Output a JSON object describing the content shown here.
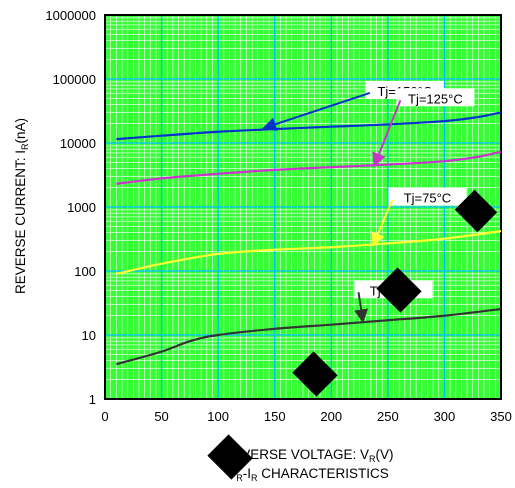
{
  "chart_data": {
    "type": "line",
    "xlabel": {
      "main": "REVERSE VOLTAGE: V",
      "sub": "R",
      "tail": "(V)"
    },
    "ylabel": {
      "main": "REVERSE CURRENT: I",
      "sub": "R",
      "tail": "(nA)"
    },
    "caption": {
      "main1": "V",
      "sub1": "R",
      "mid": "-I",
      "sub2": "R",
      "tail": " CHARACTERISTICS"
    },
    "xlim": [
      0,
      350
    ],
    "ylim": [
      1,
      1000000
    ],
    "y_scale": "log",
    "x_ticks": [
      "0",
      "50",
      "100",
      "150",
      "200",
      "250",
      "300",
      "350"
    ],
    "y_ticks": [
      "1",
      "10",
      "100",
      "1000",
      "10000",
      "100000",
      "1000000"
    ],
    "grid": true,
    "colors": {
      "background": "#33ff33",
      "grid_major": "#00bfff",
      "grid_minor": "#ffffff",
      "border": "#000000"
    },
    "series": [
      {
        "name": "Tj=150°C",
        "color": "#0033cc",
        "x": [
          10,
          50,
          100,
          150,
          200,
          250,
          300,
          330,
          350
        ],
        "y": [
          11500,
          13000,
          15000,
          16500,
          18000,
          19500,
          22000,
          25500,
          30000
        ]
      },
      {
        "name": "Tj=125°C",
        "color": "#cc33cc",
        "x": [
          10,
          50,
          100,
          150,
          200,
          250,
          300,
          330,
          350
        ],
        "y": [
          2300,
          2800,
          3300,
          3800,
          4200,
          4600,
          5200,
          6100,
          7300
        ]
      },
      {
        "name": "Tj=75°C",
        "color": "#ffff33",
        "x": [
          10,
          50,
          100,
          150,
          200,
          250,
          300,
          350
        ],
        "y": [
          90,
          130,
          185,
          215,
          235,
          270,
          320,
          420
        ]
      },
      {
        "name": "Tj=25°C",
        "color": "#333333",
        "x": [
          10,
          50,
          75,
          100,
          150,
          200,
          250,
          300,
          350
        ],
        "y": [
          3.5,
          5.5,
          8,
          10,
          12.5,
          14.5,
          17,
          20,
          25.5
        ]
      }
    ],
    "annotations": [
      {
        "series": 0,
        "label_x": 265,
        "label_y": 65000,
        "arrow_x": 140,
        "arrow_y": 17000
      },
      {
        "series": 1,
        "label_x": 292,
        "label_y": 50000,
        "arrow_x": 238,
        "arrow_y": 4400
      },
      {
        "series": 2,
        "label_x": 285,
        "label_y": 1400,
        "arrow_x": 237,
        "arrow_y": 250
      },
      {
        "series": 3,
        "label_x": 255,
        "label_y": 50,
        "arrow_x": 228,
        "arrow_y": 16
      }
    ]
  }
}
